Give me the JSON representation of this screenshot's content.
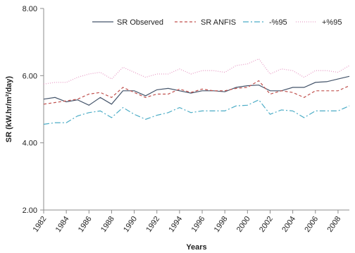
{
  "chart_data": {
    "type": "line",
    "xlabel": "Years",
    "ylabel": "SR (kW.hr/m²/day)",
    "ylim": [
      2.0,
      8.0
    ],
    "xlim": [
      1982,
      2009
    ],
    "yticks": [
      "2.00",
      "4.00",
      "6.00",
      "8.00"
    ],
    "xticks": [
      1982,
      1984,
      1986,
      1988,
      1990,
      1992,
      1994,
      1996,
      1998,
      2000,
      2002,
      2004,
      2006,
      2008
    ],
    "x": [
      1982,
      1983,
      1984,
      1985,
      1986,
      1987,
      1988,
      1989,
      1990,
      1991,
      1992,
      1993,
      1994,
      1995,
      1996,
      1997,
      1998,
      1999,
      2000,
      2001,
      2002,
      2003,
      2004,
      2005,
      2006,
      2007,
      2008,
      2009
    ],
    "grid": false,
    "legend_position": "top",
    "series": [
      {
        "name": "SR Observed",
        "color": "#44546a",
        "style": "solid",
        "values": [
          5.3,
          5.35,
          5.22,
          5.28,
          5.12,
          5.35,
          5.15,
          5.55,
          5.55,
          5.4,
          5.58,
          5.62,
          5.55,
          5.48,
          5.55,
          5.55,
          5.52,
          5.65,
          5.7,
          5.72,
          5.55,
          5.55,
          5.65,
          5.65,
          5.8,
          5.82,
          5.9,
          5.98
        ]
      },
      {
        "name": "SR ANFIS",
        "color": "#c0504d",
        "style": "dashed",
        "values": [
          5.15,
          5.2,
          5.25,
          5.3,
          5.45,
          5.5,
          5.35,
          5.65,
          5.5,
          5.35,
          5.45,
          5.45,
          5.6,
          5.5,
          5.6,
          5.55,
          5.55,
          5.62,
          5.65,
          5.85,
          5.45,
          5.55,
          5.5,
          5.35,
          5.55,
          5.55,
          5.55,
          5.7
        ]
      },
      {
        "name": "-%95",
        "color": "#4bacc6",
        "style": "dashdot",
        "values": [
          4.55,
          4.6,
          4.6,
          4.8,
          4.9,
          4.95,
          4.75,
          5.05,
          4.85,
          4.7,
          4.82,
          4.9,
          5.05,
          4.9,
          4.95,
          4.95,
          4.95,
          5.1,
          5.12,
          5.28,
          4.85,
          4.98,
          4.95,
          4.75,
          4.95,
          4.95,
          4.95,
          5.1
        ]
      },
      {
        "name": "+%95",
        "color": "#e8a0c8",
        "style": "dotted",
        "values": [
          5.75,
          5.8,
          5.8,
          5.95,
          6.05,
          6.1,
          5.9,
          6.25,
          6.1,
          5.95,
          6.05,
          6.05,
          6.2,
          6.05,
          6.15,
          6.15,
          6.1,
          6.3,
          6.35,
          6.5,
          6.05,
          6.2,
          6.15,
          5.95,
          6.15,
          6.15,
          6.1,
          6.3
        ]
      }
    ]
  }
}
